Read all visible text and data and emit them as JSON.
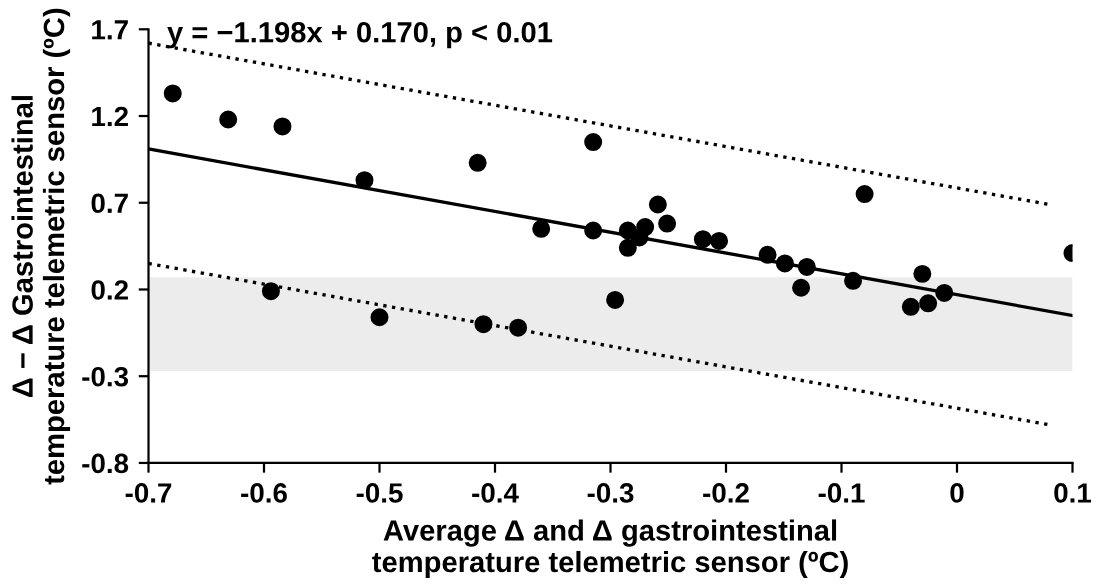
{
  "chart_data": {
    "type": "scatter",
    "title": "y = −1.198x + 0.170, p < 0.01",
    "xlabel": "Average Δ and Δ gastrointestinal\ntemperature telemetric sensor (ºC)",
    "ylabel": "Δ − Δ Gastrointestinal\ntemperature telemetric sensor (ºC)",
    "x": [
      -0.679,
      -0.631,
      -0.584,
      -0.513,
      -0.415,
      -0.315,
      -0.36,
      -0.315,
      -0.594,
      -0.5,
      -0.41,
      -0.38,
      -0.296,
      -0.285,
      -0.285,
      -0.275,
      -0.27,
      -0.259,
      -0.251,
      -0.22,
      -0.206,
      -0.164,
      -0.149,
      -0.13,
      -0.135,
      -0.09,
      -0.08,
      -0.03,
      -0.04,
      -0.025,
      -0.011,
      0.1
    ],
    "series": [
      {
        "color": "#000000",
        "marker": "circle",
        "values": [
          1.33,
          1.18,
          1.14,
          0.83,
          0.93,
          1.05,
          0.55,
          0.54,
          0.19,
          0.04,
          0.0,
          -0.02,
          0.14,
          0.54,
          0.44,
          0.5,
          0.56,
          0.69,
          0.58,
          0.49,
          0.48,
          0.4,
          0.35,
          0.33,
          0.21,
          0.25,
          0.75,
          0.29,
          0.1,
          0.12,
          0.18,
          0.41
        ]
      },
      {
        "type": "line",
        "color": "#000000",
        "line_style": "solid",
        "x": [
          -0.7,
          0.1
        ],
        "values": [
          1.01,
          0.05
        ]
      },
      {
        "type": "line",
        "color": "#000000",
        "line_style": "dotted",
        "x": [
          -0.7,
          0.08
        ],
        "values": [
          1.62,
          0.69
        ]
      },
      {
        "type": "line",
        "color": "#000000",
        "line_style": "dotted",
        "x": [
          -0.7,
          0.08
        ],
        "values": [
          0.35,
          -0.58
        ]
      }
    ],
    "bands": [
      {
        "axis": "y",
        "from": -0.27,
        "to": 0.27,
        "color": "#ececec"
      }
    ],
    "xlim": [
      -0.7,
      0.1
    ],
    "xticks": [
      -0.7,
      -0.6,
      -0.5,
      -0.4,
      -0.3,
      -0.2,
      -0.1,
      {
        "value": 0,
        "label": "0"
      },
      0.1
    ],
    "ylim": [
      -0.8,
      1.7
    ],
    "yticks": [
      -0.8,
      -0.3,
      0.2,
      0.7,
      1.2,
      1.7
    ],
    "grid": false,
    "legend": false
  }
}
